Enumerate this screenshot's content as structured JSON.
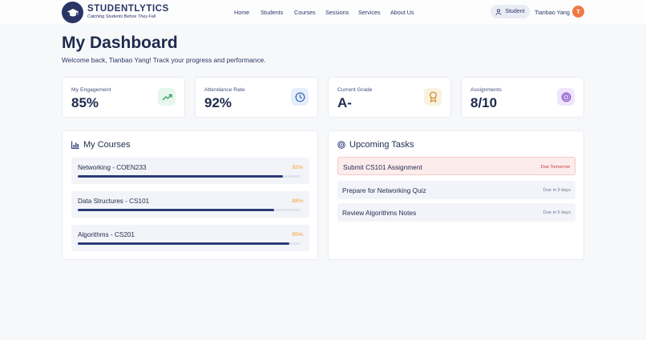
{
  "brand": {
    "name": "STUDENTLYTICS",
    "tagline": "Catching Students Before They Fall"
  },
  "nav": {
    "items": [
      "Home",
      "Students",
      "Courses",
      "Sessions",
      "Services",
      "About Us"
    ]
  },
  "user": {
    "role": "Student",
    "name": "Tianbao Yang",
    "initial": "T"
  },
  "page": {
    "title": "My Dashboard",
    "subtitle": "Welcome back, Tianbao Yang! Track your progress and performance."
  },
  "stats": [
    {
      "label": "My Engagement",
      "value": "85%",
      "icon": "trending-up-icon",
      "color": "#2e9e5b",
      "bg": "#e7f6ec"
    },
    {
      "label": "Attendance Rate",
      "value": "92%",
      "icon": "clock-icon",
      "color": "#2d5fb8",
      "bg": "#e6eefb"
    },
    {
      "label": "Current Grade",
      "value": "A-",
      "icon": "award-icon",
      "color": "#c98a1b",
      "bg": "#fbf1df"
    },
    {
      "label": "Assignments",
      "value": "8/10",
      "icon": "target-icon",
      "color": "#7a3fc9",
      "bg": "#efe6fb"
    }
  ],
  "courses_panel": {
    "title": "My Courses",
    "courses": [
      {
        "name": "Networking - COEN233",
        "progress": "92%"
      },
      {
        "name": "Data Structures - CS101",
        "progress": "88%"
      },
      {
        "name": "Algorithms - CS201",
        "progress": "95%"
      }
    ]
  },
  "tasks_panel": {
    "title": "Upcoming Tasks",
    "tasks": [
      {
        "name": "Submit CS101 Assignment",
        "due": "Due Tomorrow"
      },
      {
        "name": "Prepare for Networking Quiz",
        "due": "Due in 3 days"
      },
      {
        "name": "Review Algorithms Notes",
        "due": "Due in 5 days"
      }
    ]
  },
  "colors": {
    "primary": "#2a3566",
    "accent_orange": "#f07a45",
    "progress_text": "#f0a020",
    "urgent": "#c03a3a"
  }
}
